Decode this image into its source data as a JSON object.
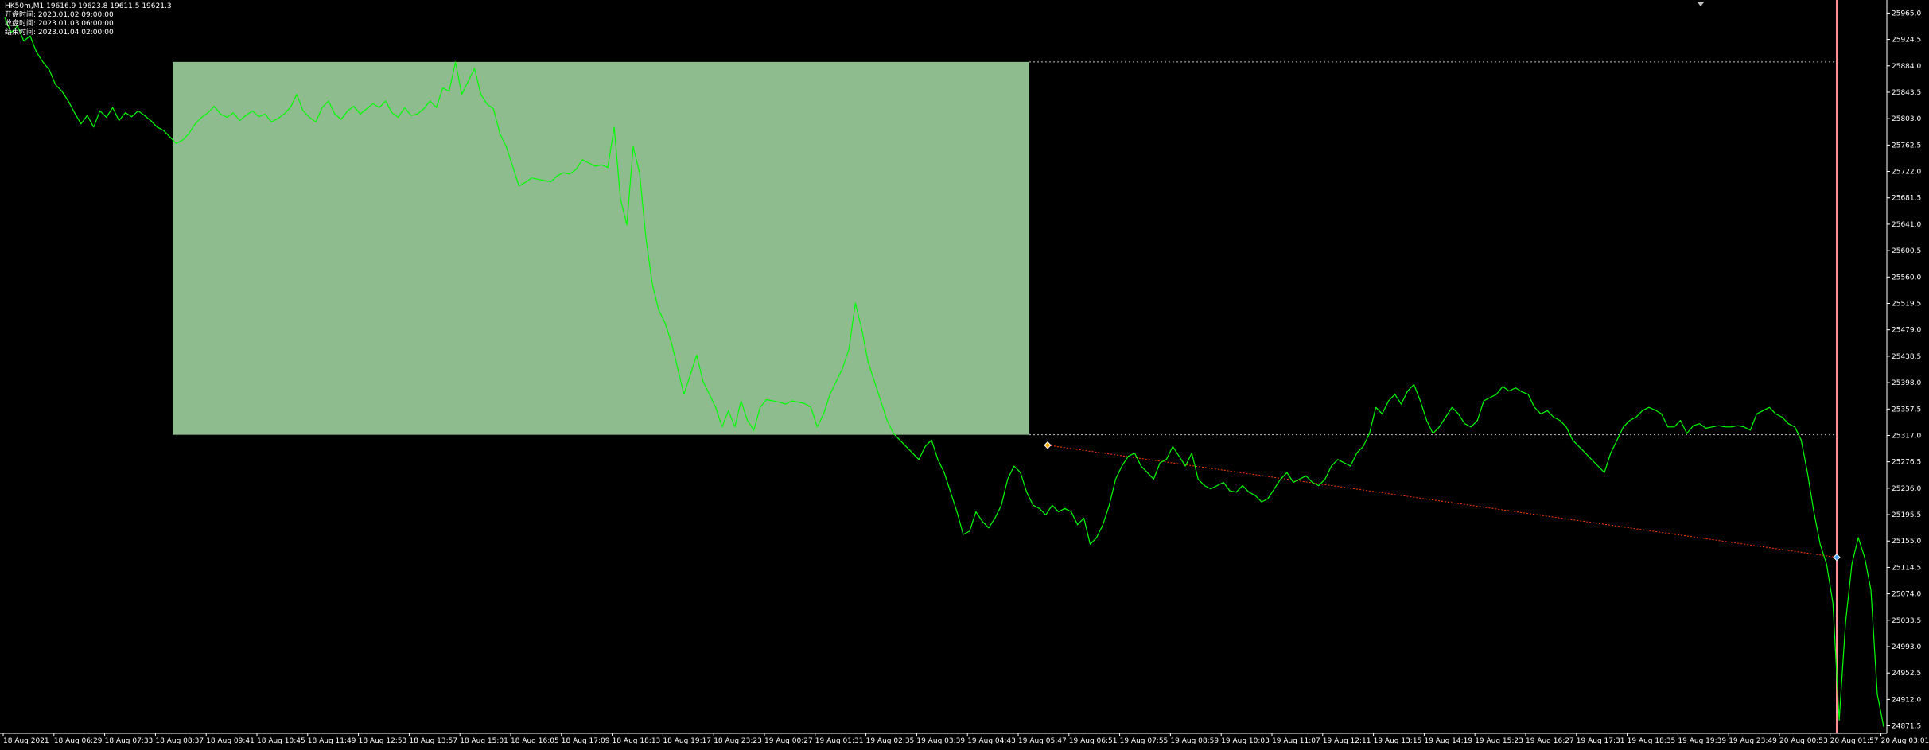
{
  "header": {
    "symbol_line": "HK50m,M1  19616.9 19623.8 19611.5 19621.3",
    "info_lines": [
      "开盘时间: 2023.01.02 09:00:00",
      "收盘时间: 2023.01.03 06:00:00",
      "结束时间: 2023.01.04 02:00:00"
    ]
  },
  "colors": {
    "background": "#000000",
    "price_line": "#00ff00",
    "range_box": "#8fbc8f",
    "level_line": "#c0c0c0",
    "trend_line": "#ff3b00",
    "vertical_marker": "#ff8c94",
    "axis": "#ffffff"
  },
  "icons": {
    "start_marker": "diamond-icon",
    "end_marker": "diamond-icon",
    "top_marker": "triangle-down-icon"
  },
  "chart_data": {
    "type": "line",
    "price_axis_labels": [
      "25965.0",
      "25924.5",
      "25884.0",
      "25843.5",
      "25803.0",
      "25762.5",
      "25722.0",
      "25681.5",
      "25641.0",
      "25600.5",
      "25560.0",
      "25519.5",
      "25479.0",
      "25438.5",
      "25398.0",
      "25357.5",
      "25317.0",
      "25276.5",
      "25236.0",
      "25195.5",
      "25155.0",
      "25114.5",
      "25074.0",
      "25033.5",
      "24993.0",
      "24952.5",
      "24912.0",
      "24871.5"
    ],
    "time_axis_labels": [
      "18 Aug 2021",
      "18 Aug 06:29",
      "18 Aug 07:33",
      "18 Aug 08:37",
      "18 Aug 09:41",
      "18 Aug 10:45",
      "18 Aug 11:49",
      "18 Aug 12:53",
      "18 Aug 13:57",
      "18 Aug 15:01",
      "18 Aug 16:05",
      "18 Aug 17:09",
      "18 Aug 18:13",
      "18 Aug 19:17",
      "18 Aug 23:23",
      "19 Aug 00:27",
      "19 Aug 01:31",
      "19 Aug 02:35",
      "19 Aug 03:39",
      "19 Aug 04:43",
      "19 Aug 05:47",
      "19 Aug 06:51",
      "19 Aug 07:55",
      "19 Aug 08:59",
      "19 Aug 10:03",
      "19 Aug 11:07",
      "19 Aug 12:11",
      "19 Aug 13:15",
      "19 Aug 14:19",
      "19 Aug 15:23",
      "19 Aug 16:27",
      "19 Aug 17:31",
      "19 Aug 18:35",
      "19 Aug 19:39",
      "19 Aug 23:49",
      "20 Aug 00:53",
      "20 Aug 01:57",
      "20 Aug 03:01"
    ],
    "ylim": [
      24860,
      25985
    ],
    "range_box": {
      "start": "18 Aug 08:37",
      "end": "19 Aug 05:47",
      "high": 25890,
      "low": 25318
    },
    "trend_line": {
      "start_price": 25302,
      "end_price": 25130
    },
    "series": [
      {
        "values": [
          25958,
          25935,
          25945,
          25922,
          25930,
          25905,
          25890,
          25878,
          25855,
          25845,
          25830,
          25812,
          25795,
          25808,
          25790,
          25815,
          25805,
          25820,
          25800,
          25812,
          25806,
          25815,
          25808,
          25800,
          25790,
          25785,
          25775,
          25765,
          25770,
          25780,
          25795,
          25805,
          25812,
          25822,
          25810,
          25805,
          25812,
          25800,
          25808,
          25815,
          25806,
          25810,
          25798,
          25803,
          25810,
          25820,
          25840,
          25815,
          25805,
          25798,
          25820,
          25830,
          25810,
          25802,
          25815,
          25822,
          25810,
          25818,
          25826,
          25820,
          25830,
          25812,
          25805,
          25820,
          25808,
          25810,
          25818,
          25830,
          25820,
          25850,
          25845,
          25890,
          25840,
          25860,
          25880,
          25840,
          25825,
          25818,
          25780,
          25760,
          25730,
          25700,
          25705,
          25712,
          25710,
          25708,
          25706,
          25715,
          25720,
          25718,
          25725,
          25740,
          25735,
          25730,
          25732,
          25728,
          25790,
          25680,
          25640,
          25760,
          25720,
          25620,
          25550,
          25510,
          25490,
          25460,
          25420,
          25380,
          25410,
          25440,
          25400,
          25380,
          25360,
          25330,
          25355,
          25330,
          25370,
          25340,
          25325,
          25360,
          25372,
          25370,
          25368,
          25365,
          25370,
          25368,
          25366,
          25360,
          25330,
          25350,
          25380,
          25400,
          25420,
          25450,
          25520,
          25480,
          25430,
          25400,
          25370,
          25340,
          25320,
          25310,
          25300,
          25290,
          25280,
          25300,
          25310,
          25280,
          25260,
          25230,
          25200,
          25165,
          25170,
          25200,
          25185,
          25175,
          25190,
          25210,
          25250,
          25270,
          25260,
          25230,
          25210,
          25205,
          25195,
          25210,
          25200,
          25205,
          25200,
          25180,
          25190,
          25150,
          25160,
          25180,
          25210,
          25250,
          25270,
          25285,
          25290,
          25270,
          25260,
          25250,
          25275,
          25280,
          25300,
          25285,
          25270,
          25290,
          25250,
          25240,
          25235,
          25240,
          25245,
          25232,
          25230,
          25240,
          25230,
          25225,
          25215,
          25220,
          25235,
          25250,
          25260,
          25245,
          25250,
          25255,
          25245,
          25240,
          25250,
          25270,
          25280,
          25275,
          25270,
          25290,
          25300,
          25320,
          25360,
          25350,
          25370,
          25380,
          25365,
          25385,
          25395,
          25370,
          25340,
          25320,
          25330,
          25345,
          25360,
          25350,
          25335,
          25330,
          25340,
          25370,
          25375,
          25380,
          25392,
          25385,
          25390,
          25384,
          25380,
          25360,
          25350,
          25355,
          25345,
          25340,
          25330,
          25310,
          25300,
          25290,
          25280,
          25270,
          25260,
          25290,
          25310,
          25330,
          25340,
          25345,
          25355,
          25360,
          25356,
          25350,
          25330,
          25330,
          25340,
          25320,
          25332,
          25335,
          25328,
          25330,
          25332,
          25330,
          25330,
          25332,
          25330,
          25325,
          25350,
          25355,
          25360,
          25350,
          25345,
          25335,
          25330,
          25310,
          25260,
          25200,
          25150,
          25120,
          25060,
          24880,
          25030,
          25120,
          25160,
          25130,
          25080,
          24920,
          24870
        ]
      }
    ]
  }
}
